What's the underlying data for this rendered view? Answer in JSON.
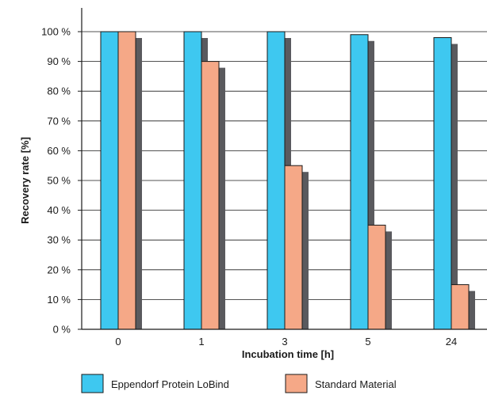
{
  "chart_data": {
    "type": "bar",
    "categories": [
      "0",
      "1",
      "3",
      "5",
      "24"
    ],
    "series": [
      {
        "name": "Eppendorf Protein LoBind",
        "values": [
          100,
          100,
          100,
          99,
          98
        ],
        "color": "#3ec8f0"
      },
      {
        "name": "Standard Material",
        "values": [
          100,
          90,
          55,
          35,
          15
        ],
        "color": "#f5a887"
      }
    ],
    "shadow_color": "#5a5a5e",
    "xlabel": "Incubation time [h]",
    "ylabel": "Recovery rate [%]",
    "ylim": [
      0,
      100
    ],
    "yticks": [
      "0 %",
      "10 %",
      "20 %",
      "30 %",
      "40 %",
      "50 %",
      "60 %",
      "70 %",
      "80 %",
      "90 %",
      "100 %"
    ],
    "grid": true,
    "legend_position": "bottom"
  }
}
